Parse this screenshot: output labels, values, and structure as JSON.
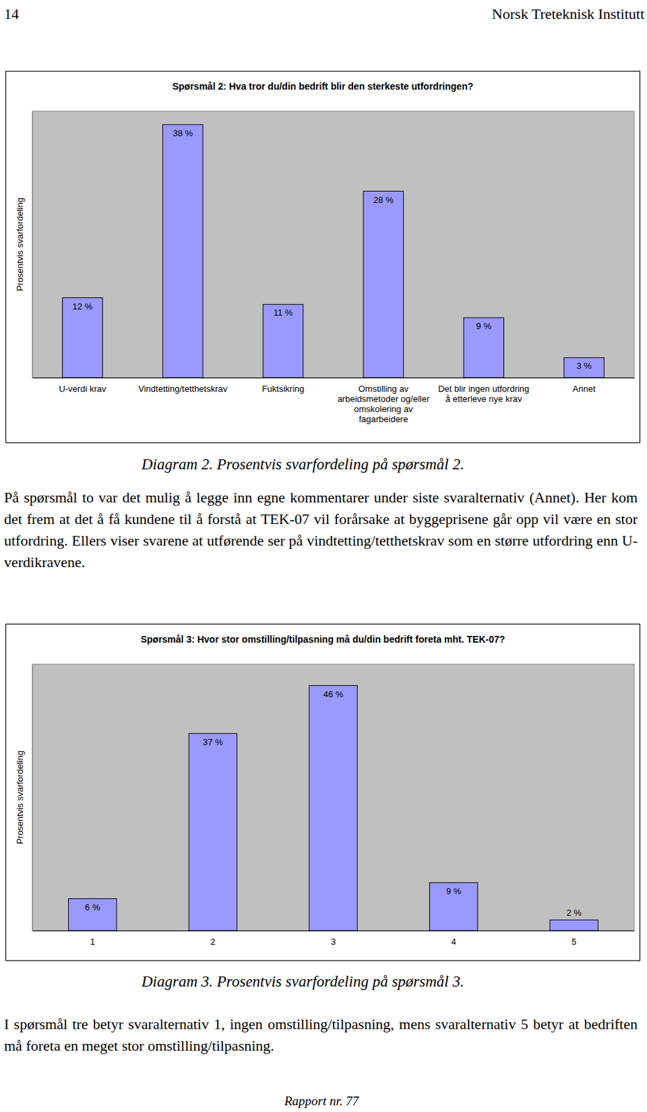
{
  "header": {
    "page_number": 14,
    "institute": "Norsk Treteknisk Institutt"
  },
  "chart_data": [
    {
      "type": "bar",
      "title": "Spørsmål 2: Hva tror du/din bedrift blir den sterkeste utfordringen?",
      "y_label": "Prosentvis svarfordeling",
      "categories": [
        "U-verdi krav",
        "Vindtetting/tetthetskrav",
        "Fuktsikring",
        "Omstilling av arbeidsmetoder og/eller omskolering av fagarbeidere",
        "Det blir ingen utfordring å etterleve nye krav",
        "Annet"
      ],
      "values": [
        12,
        38,
        11,
        28,
        9,
        3
      ],
      "value_labels": [
        "12 %",
        "38 %",
        "11 %",
        "28 %",
        "9 %",
        "3 %"
      ],
      "color": "#9999ff",
      "ylim": [
        0,
        40
      ],
      "grid": false,
      "data_labels": true,
      "tick_labels": "x"
    },
    {
      "type": "bar",
      "title": "Spørsmål 3: Hvor stor omstilling/tilpasning må du/din bedrift foreta mht. TEK-07?",
      "y_label": "Prosentvis svarfordeling",
      "categories": [
        "1",
        "2",
        "3",
        "4",
        "5"
      ],
      "values": [
        6,
        37,
        46,
        9,
        2
      ],
      "value_labels": [
        "6 %",
        "37 %",
        "46 %",
        "9 %",
        "2 %"
      ],
      "color": "#9999ff",
      "ylim": [
        0,
        50
      ],
      "grid": false,
      "data_labels": true,
      "tick_labels": "x"
    }
  ],
  "captions": [
    "Diagram 2. Prosentvis svarfordeling på spørsmål 2.",
    "Diagram 3. Prosentvis svarfordeling på spørsmål 3."
  ],
  "paragraphs": [
    "På spørsmål to var det mulig å legge inn egne kommentarer under siste svaralternativ (Annet). Her kom det frem at det å få kundene til å forstå at TEK-07 vil forårsake at byggeprisene går opp vil være en stor utfordring. Ellers viser svarene at utførende ser på vindtetting/tetthetskrav som en større utfordring enn U-verdikravene.",
    "I spørsmål tre betyr svaralternativ 1, ingen omstilling/tilpasning, mens svaralternativ 5 betyr at bedriften må foreta en meget stor omstilling/tilpasning."
  ],
  "footer": "Rapport nr. 77"
}
